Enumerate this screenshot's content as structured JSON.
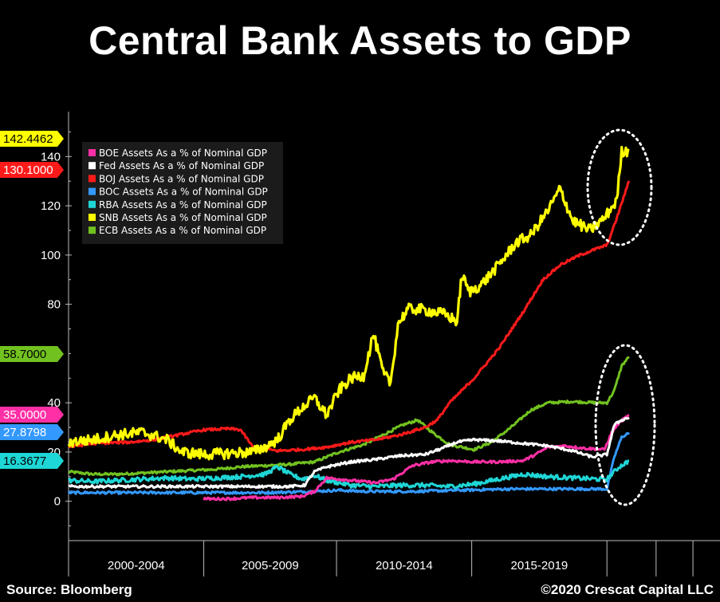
{
  "page": {
    "title": "Central Bank Assets to GDP",
    "source": "Source: Bloomberg",
    "copyright": "©2020 Crescat Capital LLC"
  },
  "chart_data": {
    "type": "line",
    "title": "Central Bank Assets to GDP",
    "xlabel": "",
    "ylabel": "",
    "x_range": [
      1998.0,
      2024.5
    ],
    "ylim": [
      -15,
      155
    ],
    "y_ticks": [
      0,
      20,
      40,
      80,
      100,
      120,
      140
    ],
    "y_tick_labels": [
      "0",
      "20",
      "40",
      "80",
      "100",
      "120",
      "140"
    ],
    "period_labels": [
      {
        "label": "2000-2004",
        "start": 1998.0,
        "end": 2003.5
      },
      {
        "label": "2005-2009",
        "start": 2003.5,
        "end": 2008.9
      },
      {
        "label": "2010-2014",
        "start": 2008.9,
        "end": 2014.4
      },
      {
        "label": "2015-2019",
        "start": 2014.4,
        "end": 2019.9
      }
    ],
    "grid": false,
    "legend_position": "top-left",
    "series": [
      {
        "name": "BOE Assets As a % of Nominal GDP",
        "color": "#ff2fa5",
        "last_value_label": "35.0000",
        "points": [
          [
            2003.5,
            1.0
          ],
          [
            2004.5,
            1.0
          ],
          [
            2005.5,
            1.5
          ],
          [
            2006.5,
            1.5
          ],
          [
            2007.5,
            2.0
          ],
          [
            2008.0,
            4.0
          ],
          [
            2008.5,
            9.5
          ],
          [
            2009.5,
            8.5
          ],
          [
            2010.5,
            7.5
          ],
          [
            2011.2,
            9.0
          ],
          [
            2012.0,
            14.5
          ],
          [
            2012.8,
            16.0
          ],
          [
            2013.5,
            16.5
          ],
          [
            2014.5,
            16.0
          ],
          [
            2015.5,
            16.0
          ],
          [
            2016.5,
            16.5
          ],
          [
            2017.0,
            19.0
          ],
          [
            2017.5,
            22.0
          ],
          [
            2018.2,
            22.5
          ],
          [
            2019.0,
            21.5
          ],
          [
            2019.8,
            21.0
          ],
          [
            2020.1,
            28.0
          ],
          [
            2020.4,
            32.0
          ],
          [
            2020.8,
            35.0
          ]
        ]
      },
      {
        "name": "Fed Assets As a % of Nominal GDP",
        "color": "#ffffff",
        "last_value_label": "",
        "points": [
          [
            1998.0,
            6.0
          ],
          [
            1999.5,
            6.0
          ],
          [
            2001.0,
            6.0
          ],
          [
            2002.5,
            6.0
          ],
          [
            2004.0,
            6.0
          ],
          [
            2005.5,
            6.0
          ],
          [
            2007.0,
            6.0
          ],
          [
            2007.6,
            6.5
          ],
          [
            2008.0,
            12.0
          ],
          [
            2008.5,
            14.0
          ],
          [
            2009.5,
            16.0
          ],
          [
            2010.5,
            17.0
          ],
          [
            2011.5,
            18.5
          ],
          [
            2012.5,
            19.0
          ],
          [
            2013.2,
            21.5
          ],
          [
            2013.8,
            24.0
          ],
          [
            2014.5,
            25.0
          ],
          [
            2015.5,
            24.5
          ],
          [
            2016.5,
            23.5
          ],
          [
            2017.5,
            22.5
          ],
          [
            2018.5,
            20.5
          ],
          [
            2019.3,
            18.0
          ],
          [
            2019.9,
            19.0
          ],
          [
            2020.2,
            31.0
          ],
          [
            2020.5,
            33.0
          ],
          [
            2020.8,
            34.0
          ]
        ]
      },
      {
        "name": "BOJ Assets As a % of Nominal GDP",
        "color": "#ff1a1a",
        "last_value_label": "130.1000",
        "points": [
          [
            1998.0,
            22.0
          ],
          [
            1999.0,
            23.5
          ],
          [
            2000.5,
            24.0
          ],
          [
            2001.5,
            25.0
          ],
          [
            2002.5,
            27.0
          ],
          [
            2003.5,
            29.0
          ],
          [
            2004.5,
            29.5
          ],
          [
            2005.0,
            29.0
          ],
          [
            2005.5,
            22.0
          ],
          [
            2006.5,
            20.5
          ],
          [
            2007.5,
            21.0
          ],
          [
            2008.5,
            22.0
          ],
          [
            2009.5,
            24.0
          ],
          [
            2010.5,
            25.0
          ],
          [
            2011.5,
            27.0
          ],
          [
            2012.5,
            30.0
          ],
          [
            2013.0,
            33.0
          ],
          [
            2013.5,
            40.0
          ],
          [
            2014.5,
            50.0
          ],
          [
            2015.5,
            62.0
          ],
          [
            2016.5,
            77.0
          ],
          [
            2017.3,
            90.0
          ],
          [
            2018.0,
            96.0
          ],
          [
            2018.8,
            100.0
          ],
          [
            2019.6,
            103.0
          ],
          [
            2019.9,
            104.0
          ],
          [
            2020.2,
            112.0
          ],
          [
            2020.8,
            130.1
          ]
        ]
      },
      {
        "name": "BOC Assets As a % of Nominal GDP",
        "color": "#3399ff",
        "last_value_label": "27.8798",
        "points": [
          [
            1998.0,
            3.5
          ],
          [
            2000.0,
            3.5
          ],
          [
            2002.0,
            3.5
          ],
          [
            2004.0,
            3.5
          ],
          [
            2006.0,
            3.5
          ],
          [
            2008.0,
            4.0
          ],
          [
            2009.0,
            4.5
          ],
          [
            2010.0,
            4.0
          ],
          [
            2012.0,
            4.0
          ],
          [
            2014.0,
            4.5
          ],
          [
            2016.0,
            5.0
          ],
          [
            2018.0,
            5.0
          ],
          [
            2019.9,
            5.0
          ],
          [
            2020.2,
            18.0
          ],
          [
            2020.5,
            26.0
          ],
          [
            2020.8,
            27.9
          ]
        ]
      },
      {
        "name": "RBA Assets As a % of Nominal GDP",
        "color": "#1fd6d6",
        "last_value_label": "16.3677",
        "points": [
          [
            1998.0,
            8.5
          ],
          [
            1999.0,
            8.0
          ],
          [
            2000.0,
            8.5
          ],
          [
            2001.0,
            9.0
          ],
          [
            2002.0,
            9.5
          ],
          [
            2003.0,
            9.0
          ],
          [
            2004.0,
            9.5
          ],
          [
            2005.0,
            10.0
          ],
          [
            2006.0,
            11.0
          ],
          [
            2006.5,
            14.0
          ],
          [
            2007.0,
            11.0
          ],
          [
            2007.5,
            9.0
          ],
          [
            2008.0,
            10.5
          ],
          [
            2008.5,
            8.5
          ],
          [
            2009.5,
            6.5
          ],
          [
            2010.5,
            6.0
          ],
          [
            2011.5,
            6.5
          ],
          [
            2012.5,
            6.5
          ],
          [
            2013.5,
            6.0
          ],
          [
            2014.5,
            7.0
          ],
          [
            2015.5,
            9.0
          ],
          [
            2016.5,
            11.0
          ],
          [
            2017.5,
            10.0
          ],
          [
            2018.5,
            9.5
          ],
          [
            2019.5,
            9.0
          ],
          [
            2019.9,
            9.0
          ],
          [
            2020.1,
            11.0
          ],
          [
            2020.4,
            14.0
          ],
          [
            2020.8,
            16.4
          ]
        ]
      },
      {
        "name": "SNB Assets As a % of Nominal GDP",
        "color": "#ffff00",
        "last_value_label": "142.4462",
        "points": [
          [
            1998.0,
            24.0
          ],
          [
            1999.0,
            25.0
          ],
          [
            2000.0,
            27.0
          ],
          [
            2001.0,
            28.0
          ],
          [
            2002.0,
            25.0
          ],
          [
            2002.6,
            20.0
          ],
          [
            2003.5,
            19.0
          ],
          [
            2004.5,
            19.5
          ],
          [
            2005.5,
            20.0
          ],
          [
            2006.0,
            22.0
          ],
          [
            2006.5,
            25.0
          ],
          [
            2007.0,
            33.0
          ],
          [
            2007.5,
            38.0
          ],
          [
            2008.0,
            42.0
          ],
          [
            2008.5,
            35.0
          ],
          [
            2009.0,
            45.0
          ],
          [
            2009.5,
            50.0
          ],
          [
            2010.0,
            51.0
          ],
          [
            2010.4,
            68.0
          ],
          [
            2010.8,
            52.0
          ],
          [
            2011.1,
            48.0
          ],
          [
            2011.4,
            72.0
          ],
          [
            2011.8,
            78.0
          ],
          [
            2012.3,
            78.0
          ],
          [
            2012.8,
            77.0
          ],
          [
            2013.3,
            76.0
          ],
          [
            2013.8,
            73.0
          ],
          [
            2014.0,
            92.0
          ],
          [
            2014.3,
            85.0
          ],
          [
            2014.8,
            88.0
          ],
          [
            2015.5,
            96.0
          ],
          [
            2016.2,
            105.0
          ],
          [
            2016.8,
            108.0
          ],
          [
            2017.5,
            118.0
          ],
          [
            2018.0,
            127.0
          ],
          [
            2018.5,
            114.0
          ],
          [
            2019.2,
            110.0
          ],
          [
            2019.8,
            115.0
          ],
          [
            2020.0,
            118.0
          ],
          [
            2020.3,
            122.0
          ],
          [
            2020.5,
            142.0
          ],
          [
            2020.8,
            142.4
          ]
        ]
      },
      {
        "name": "ECB Assets As a % of Nominal GDP",
        "color": "#72c21f",
        "last_value_label": "58.7000",
        "points": [
          [
            1998.0,
            12.0
          ],
          [
            1999.0,
            11.0
          ],
          [
            2000.0,
            11.0
          ],
          [
            2001.0,
            11.5
          ],
          [
            2002.0,
            12.0
          ],
          [
            2003.0,
            12.5
          ],
          [
            2004.0,
            13.0
          ],
          [
            2005.0,
            14.0
          ],
          [
            2006.0,
            14.5
          ],
          [
            2007.0,
            15.0
          ],
          [
            2008.0,
            16.0
          ],
          [
            2009.0,
            20.0
          ],
          [
            2010.0,
            23.0
          ],
          [
            2011.0,
            28.0
          ],
          [
            2011.6,
            31.0
          ],
          [
            2012.2,
            33.0
          ],
          [
            2012.8,
            28.0
          ],
          [
            2013.5,
            23.0
          ],
          [
            2014.0,
            22.0
          ],
          [
            2014.5,
            21.0
          ],
          [
            2015.2,
            24.0
          ],
          [
            2016.0,
            30.0
          ],
          [
            2016.8,
            37.0
          ],
          [
            2017.5,
            40.0
          ],
          [
            2018.5,
            40.5
          ],
          [
            2019.5,
            40.0
          ],
          [
            2019.9,
            40.0
          ],
          [
            2020.2,
            45.0
          ],
          [
            2020.5,
            55.0
          ],
          [
            2020.8,
            58.7
          ]
        ]
      }
    ]
  }
}
